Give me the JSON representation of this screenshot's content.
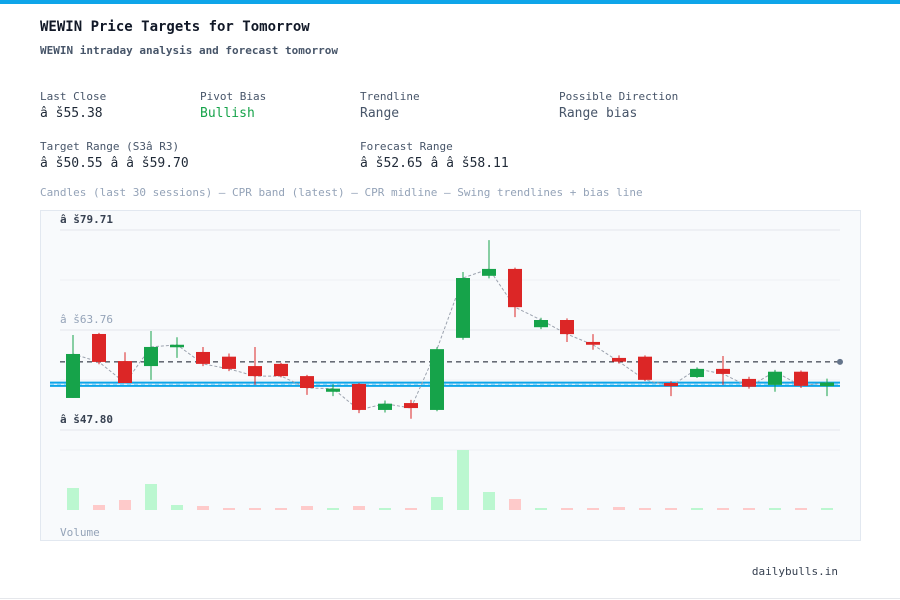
{
  "header": {
    "title": "WEWIN Price Targets for Tomorrow",
    "subtitle": "WEWIN intraday analysis and forecast tomorrow"
  },
  "stats": [
    {
      "label": "Last Close",
      "value": "â š55.38"
    },
    {
      "label": "Pivot Bias",
      "value": "Bullish"
    },
    {
      "label": "Trendline",
      "value": "Range"
    },
    {
      "label": "Possible Direction",
      "value": "Range bias"
    },
    {
      "label": "Target Range (S3â  R3)",
      "value": "â š50.55 â   â š59.70"
    },
    {
      "label": "Forecast Range",
      "value": "â š52.65 â   â š58.11"
    }
  ],
  "caption": "Candles (last 30 sessions) – CPR band (latest) – CPR midline – Swing trendlines + bias line",
  "chart_data": {
    "type": "candlestick",
    "open": [
      52.91,
      63.12,
      58.8,
      58.0,
      61.0,
      60.25,
      59.5,
      58.0,
      58.35,
      56.4,
      53.9,
      55.15,
      51.0,
      52.1,
      51.0,
      62.5,
      72.4,
      73.5,
      64.2,
      65.35,
      61.85,
      59.3,
      59.5,
      55.3,
      56.25,
      57.55,
      55.95,
      55.0,
      57.1,
      54.8
    ],
    "high": [
      62.96,
      63.3,
      60.2,
      63.6,
      62.6,
      61.05,
      60.0,
      61.05,
      58.5,
      56.6,
      55.1,
      55.3,
      52.5,
      52.6,
      61.0,
      73.0,
      78.1,
      73.7,
      65.7,
      65.6,
      63.1,
      59.7,
      59.7,
      55.6,
      57.8,
      59.6,
      56.3,
      57.4,
      57.3,
      56.0
    ],
    "low": [
      52.9,
      58.3,
      55.3,
      55.8,
      59.3,
      58.0,
      57.2,
      55.0,
      56.2,
      53.4,
      53.2,
      50.5,
      50.6,
      49.6,
      50.8,
      62.2,
      72.0,
      65.8,
      63.9,
      61.85,
      60.6,
      58.4,
      55.6,
      53.2,
      56.1,
      55.0,
      54.4,
      53.9,
      54.5,
      53.2
    ],
    "close": [
      59.93,
      58.66,
      55.3,
      61.05,
      61.4,
      58.35,
      57.55,
      56.4,
      56.4,
      54.5,
      54.4,
      51.0,
      52.0,
      51.3,
      60.7,
      72.05,
      73.5,
      67.4,
      65.35,
      63.1,
      61.4,
      58.7,
      55.8,
      54.8,
      57.55,
      56.75,
      54.7,
      57.1,
      54.85,
      55.38
    ],
    "volume": [
      22,
      5,
      10,
      26,
      5,
      4,
      2,
      2,
      2,
      4,
      2,
      4,
      2,
      2,
      13,
      60,
      18,
      11,
      2,
      2,
      2,
      3,
      2,
      2,
      2,
      2,
      2,
      2,
      2,
      2
    ],
    "volume_label": "Volume",
    "up_color": "#16a34a",
    "down_color": "#dc2626",
    "up_volume_color": "#bbf7d0",
    "down_volume_color": "#fecaca",
    "bias_line": 58.66,
    "bias_color": "#111827",
    "cpr": {
      "top": 55.35,
      "mid": 55.1,
      "bottom": 54.85,
      "color": "#0ea5e9"
    },
    "ylim": [
      47.8,
      79.71
    ],
    "yticks": [
      {
        "value": 47.8,
        "label": "â š47.80"
      },
      {
        "value": 63.76,
        "label": "â š63.76"
      },
      {
        "value": 79.71,
        "label": "â š79.71"
      }
    ],
    "grid": true
  },
  "footer": "dailybulls.in"
}
